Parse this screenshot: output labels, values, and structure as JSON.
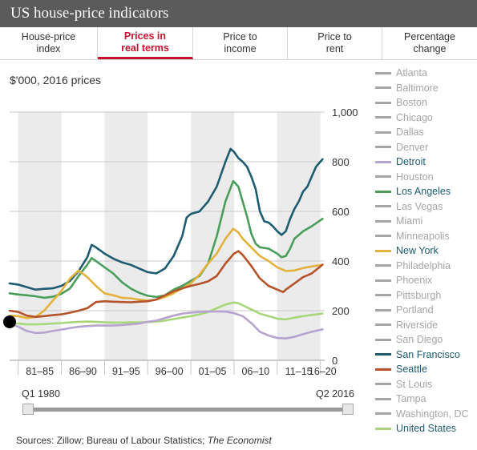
{
  "title": "US house-price indicators",
  "tabs": [
    {
      "label": "House-price\nindex",
      "active": false
    },
    {
      "label": "Prices in\nreal terms",
      "active": true
    },
    {
      "label": "Price to\nincome",
      "active": false
    },
    {
      "label": "Price to\nrent",
      "active": false
    },
    {
      "label": "Percentage\nchange",
      "active": false
    }
  ],
  "units": "$'000, 2016 prices",
  "slider": {
    "start_label": "Q1 1980",
    "end_label": "Q2 2016"
  },
  "sources": {
    "text": "Sources: Zillow; Bureau of Labour Statistics; ",
    "publication": "The Economist"
  },
  "legend": [
    {
      "name": "Atlanta",
      "color": "#a6a6a6",
      "active": false
    },
    {
      "name": "Baltimore",
      "color": "#a6a6a6",
      "active": false
    },
    {
      "name": "Boston",
      "color": "#a6a6a6",
      "active": false
    },
    {
      "name": "Chicago",
      "color": "#a6a6a6",
      "active": false
    },
    {
      "name": "Dallas",
      "color": "#a6a6a6",
      "active": false
    },
    {
      "name": "Denver",
      "color": "#a6a6a6",
      "active": false
    },
    {
      "name": "Detroit",
      "color": "#b7a3cf",
      "active": true
    },
    {
      "name": "Houston",
      "color": "#a6a6a6",
      "active": false
    },
    {
      "name": "Los Angeles",
      "color": "#4a9e5c",
      "active": true
    },
    {
      "name": "Las Vegas",
      "color": "#a6a6a6",
      "active": false
    },
    {
      "name": "Miami",
      "color": "#a6a6a6",
      "active": false
    },
    {
      "name": "Minneapolis",
      "color": "#a6a6a6",
      "active": false
    },
    {
      "name": "New York",
      "color": "#e3b23c",
      "active": true
    },
    {
      "name": "Philadelphia",
      "color": "#a6a6a6",
      "active": false
    },
    {
      "name": "Phoenix",
      "color": "#a6a6a6",
      "active": false
    },
    {
      "name": "Pittsburgh",
      "color": "#a6a6a6",
      "active": false
    },
    {
      "name": "Portland",
      "color": "#a6a6a6",
      "active": false
    },
    {
      "name": "Riverside",
      "color": "#a6a6a6",
      "active": false
    },
    {
      "name": "San Diego",
      "color": "#a6a6a6",
      "active": false
    },
    {
      "name": "San Francisco",
      "color": "#1d5c70",
      "active": true
    },
    {
      "name": "Seattle",
      "color": "#b5532a",
      "active": true
    },
    {
      "name": "St Louis",
      "color": "#a6a6a6",
      "active": false
    },
    {
      "name": "Tampa",
      "color": "#a6a6a6",
      "active": false
    },
    {
      "name": "Washington, DC",
      "color": "#a6a6a6",
      "active": false
    },
    {
      "name": "United States",
      "color": "#a9d67a",
      "active": true
    }
  ],
  "chart_data": {
    "type": "line",
    "x_range": [
      1980,
      2016.5
    ],
    "ylim": [
      0,
      1000
    ],
    "y_ticks": [
      0,
      200,
      400,
      600,
      800,
      1000
    ],
    "y_tick_labels": [
      "0",
      "200",
      "400",
      "600",
      "800",
      "1,000"
    ],
    "grid": true,
    "period_labels": [
      "81–85",
      "86–90",
      "91–95",
      "96–00",
      "01–05",
      "06–10",
      "11–15",
      "16–20"
    ],
    "period_starts": [
      1981,
      1986,
      1991,
      1996,
      2001,
      2006,
      2011,
      2016
    ],
    "period_width": 5,
    "shaded_periods": [
      1981,
      1991,
      2001,
      2011
    ],
    "series": [
      {
        "name": "San Francisco",
        "color": "#1d5c70",
        "points": [
          [
            1980,
            310
          ],
          [
            1981,
            305
          ],
          [
            1982,
            295
          ],
          [
            1983,
            285
          ],
          [
            1984,
            288
          ],
          [
            1985,
            290
          ],
          [
            1986,
            300
          ],
          [
            1987,
            320
          ],
          [
            1988,
            360
          ],
          [
            1989,
            415
          ],
          [
            1989.5,
            465
          ],
          [
            1990,
            455
          ],
          [
            1991,
            430
          ],
          [
            1992,
            410
          ],
          [
            1993,
            395
          ],
          [
            1994,
            385
          ],
          [
            1995,
            370
          ],
          [
            1996,
            355
          ],
          [
            1997,
            350
          ],
          [
            1998,
            370
          ],
          [
            1999,
            420
          ],
          [
            2000,
            500
          ],
          [
            2000.5,
            575
          ],
          [
            2001,
            590
          ],
          [
            2002,
            600
          ],
          [
            2003,
            640
          ],
          [
            2004,
            700
          ],
          [
            2005,
            800
          ],
          [
            2005.6,
            852
          ],
          [
            2006,
            840
          ],
          [
            2006.5,
            815
          ],
          [
            2007,
            800
          ],
          [
            2007.5,
            780
          ],
          [
            2008,
            740
          ],
          [
            2008.5,
            690
          ],
          [
            2009,
            600
          ],
          [
            2009.5,
            560
          ],
          [
            2010,
            555
          ],
          [
            2010.5,
            540
          ],
          [
            2011,
            520
          ],
          [
            2011.5,
            505
          ],
          [
            2012,
            520
          ],
          [
            2012.5,
            570
          ],
          [
            2013,
            610
          ],
          [
            2013.5,
            640
          ],
          [
            2014,
            680
          ],
          [
            2014.5,
            700
          ],
          [
            2015,
            740
          ],
          [
            2015.5,
            780
          ],
          [
            2016.25,
            810
          ]
        ]
      },
      {
        "name": "Los Angeles",
        "color": "#4a9e5c",
        "points": [
          [
            1980,
            270
          ],
          [
            1981,
            265
          ],
          [
            1982,
            262
          ],
          [
            1983,
            258
          ],
          [
            1984,
            252
          ],
          [
            1985,
            256
          ],
          [
            1986,
            268
          ],
          [
            1987,
            290
          ],
          [
            1988,
            340
          ],
          [
            1989,
            385
          ],
          [
            1989.5,
            412
          ],
          [
            1990,
            400
          ],
          [
            1991,
            375
          ],
          [
            1992,
            350
          ],
          [
            1993,
            315
          ],
          [
            1994,
            290
          ],
          [
            1995,
            272
          ],
          [
            1996,
            260
          ],
          [
            1997,
            255
          ],
          [
            1998,
            262
          ],
          [
            1999,
            285
          ],
          [
            2000,
            300
          ],
          [
            2001,
            320
          ],
          [
            2002,
            340
          ],
          [
            2003,
            390
          ],
          [
            2004,
            500
          ],
          [
            2005,
            640
          ],
          [
            2005.9,
            722
          ],
          [
            2006.5,
            700
          ],
          [
            2007,
            640
          ],
          [
            2007.5,
            580
          ],
          [
            2008,
            510
          ],
          [
            2008.5,
            470
          ],
          [
            2009,
            455
          ],
          [
            2010,
            450
          ],
          [
            2011,
            430
          ],
          [
            2011.5,
            415
          ],
          [
            2012,
            420
          ],
          [
            2012.5,
            450
          ],
          [
            2013,
            490
          ],
          [
            2014,
            520
          ],
          [
            2015,
            540
          ],
          [
            2016.25,
            570
          ]
        ]
      },
      {
        "name": "New York",
        "color": "#e3b23c",
        "points": [
          [
            1980,
            180
          ],
          [
            1981,
            178
          ],
          [
            1982,
            170
          ],
          [
            1983,
            175
          ],
          [
            1984,
            200
          ],
          [
            1985,
            240
          ],
          [
            1986,
            280
          ],
          [
            1987,
            330
          ],
          [
            1988,
            362
          ],
          [
            1989,
            335
          ],
          [
            1990,
            300
          ],
          [
            1991,
            270
          ],
          [
            1992,
            262
          ],
          [
            1993,
            252
          ],
          [
            1994,
            250
          ],
          [
            1995,
            245
          ],
          [
            1996,
            240
          ],
          [
            1997,
            245
          ],
          [
            1998,
            255
          ],
          [
            1999,
            270
          ],
          [
            2000,
            290
          ],
          [
            2001,
            310
          ],
          [
            2002,
            345
          ],
          [
            2003,
            390
          ],
          [
            2004,
            430
          ],
          [
            2005,
            490
          ],
          [
            2005.9,
            530
          ],
          [
            2006.5,
            515
          ],
          [
            2007,
            490
          ],
          [
            2008,
            455
          ],
          [
            2009,
            420
          ],
          [
            2010,
            400
          ],
          [
            2011,
            375
          ],
          [
            2012,
            360
          ],
          [
            2013,
            362
          ],
          [
            2014,
            372
          ],
          [
            2015,
            378
          ],
          [
            2016.25,
            385
          ]
        ]
      },
      {
        "name": "Seattle",
        "color": "#b5532a",
        "points": [
          [
            1980,
            200
          ],
          [
            1981,
            195
          ],
          [
            1982,
            180
          ],
          [
            1983,
            175
          ],
          [
            1984,
            178
          ],
          [
            1985,
            182
          ],
          [
            1986,
            185
          ],
          [
            1987,
            192
          ],
          [
            1988,
            200
          ],
          [
            1989,
            210
          ],
          [
            1990,
            235
          ],
          [
            1991,
            238
          ],
          [
            1992,
            236
          ],
          [
            1993,
            235
          ],
          [
            1994,
            234
          ],
          [
            1995,
            236
          ],
          [
            1996,
            238
          ],
          [
            1997,
            245
          ],
          [
            1998,
            262
          ],
          [
            1999,
            278
          ],
          [
            2000,
            290
          ],
          [
            2001,
            300
          ],
          [
            2002,
            308
          ],
          [
            2003,
            318
          ],
          [
            2004,
            340
          ],
          [
            2005,
            390
          ],
          [
            2006,
            430
          ],
          [
            2006.5,
            440
          ],
          [
            2007,
            425
          ],
          [
            2008,
            380
          ],
          [
            2009,
            330
          ],
          [
            2010,
            300
          ],
          [
            2011,
            285
          ],
          [
            2011.7,
            275
          ],
          [
            2012,
            285
          ],
          [
            2013,
            310
          ],
          [
            2014,
            335
          ],
          [
            2015,
            350
          ],
          [
            2016.25,
            385
          ]
        ]
      },
      {
        "name": "United States",
        "color": "#a9d67a",
        "points": [
          [
            1980,
            150
          ],
          [
            1981,
            148
          ],
          [
            1982,
            145
          ],
          [
            1983,
            145
          ],
          [
            1984,
            146
          ],
          [
            1985,
            148
          ],
          [
            1986,
            150
          ],
          [
            1987,
            153
          ],
          [
            1988,
            155
          ],
          [
            1989,
            156
          ],
          [
            1990,
            155
          ],
          [
            1991,
            153
          ],
          [
            1992,
            152
          ],
          [
            1993,
            152
          ],
          [
            1994,
            153
          ],
          [
            1995,
            153
          ],
          [
            1996,
            154
          ],
          [
            1997,
            156
          ],
          [
            1998,
            160
          ],
          [
            1999,
            166
          ],
          [
            2000,
            172
          ],
          [
            2001,
            178
          ],
          [
            2002,
            185
          ],
          [
            2003,
            195
          ],
          [
            2004,
            210
          ],
          [
            2005,
            225
          ],
          [
            2006,
            233
          ],
          [
            2006.5,
            230
          ],
          [
            2007,
            222
          ],
          [
            2008,
            205
          ],
          [
            2009,
            188
          ],
          [
            2010,
            178
          ],
          [
            2011,
            168
          ],
          [
            2012,
            165
          ],
          [
            2013,
            172
          ],
          [
            2014,
            178
          ],
          [
            2015,
            183
          ],
          [
            2016.25,
            188
          ]
        ]
      },
      {
        "name": "Detroit",
        "color": "#b7a3cf",
        "points": [
          [
            1980,
            150
          ],
          [
            1981,
            135
          ],
          [
            1982,
            118
          ],
          [
            1983,
            110
          ],
          [
            1984,
            112
          ],
          [
            1985,
            118
          ],
          [
            1986,
            124
          ],
          [
            1987,
            130
          ],
          [
            1988,
            135
          ],
          [
            1989,
            138
          ],
          [
            1990,
            140
          ],
          [
            1991,
            140
          ],
          [
            1992,
            140
          ],
          [
            1993,
            142
          ],
          [
            1994,
            145
          ],
          [
            1995,
            148
          ],
          [
            1996,
            155
          ],
          [
            1997,
            160
          ],
          [
            1998,
            170
          ],
          [
            1999,
            180
          ],
          [
            2000,
            188
          ],
          [
            2001,
            192
          ],
          [
            2002,
            195
          ],
          [
            2003,
            196
          ],
          [
            2004,
            197
          ],
          [
            2005,
            196
          ],
          [
            2006,
            190
          ],
          [
            2007,
            178
          ],
          [
            2008,
            150
          ],
          [
            2009,
            115
          ],
          [
            2010,
            100
          ],
          [
            2011,
            90
          ],
          [
            2012,
            88
          ],
          [
            2013,
            95
          ],
          [
            2014,
            105
          ],
          [
            2015,
            115
          ],
          [
            2016.25,
            125
          ]
        ]
      }
    ]
  }
}
